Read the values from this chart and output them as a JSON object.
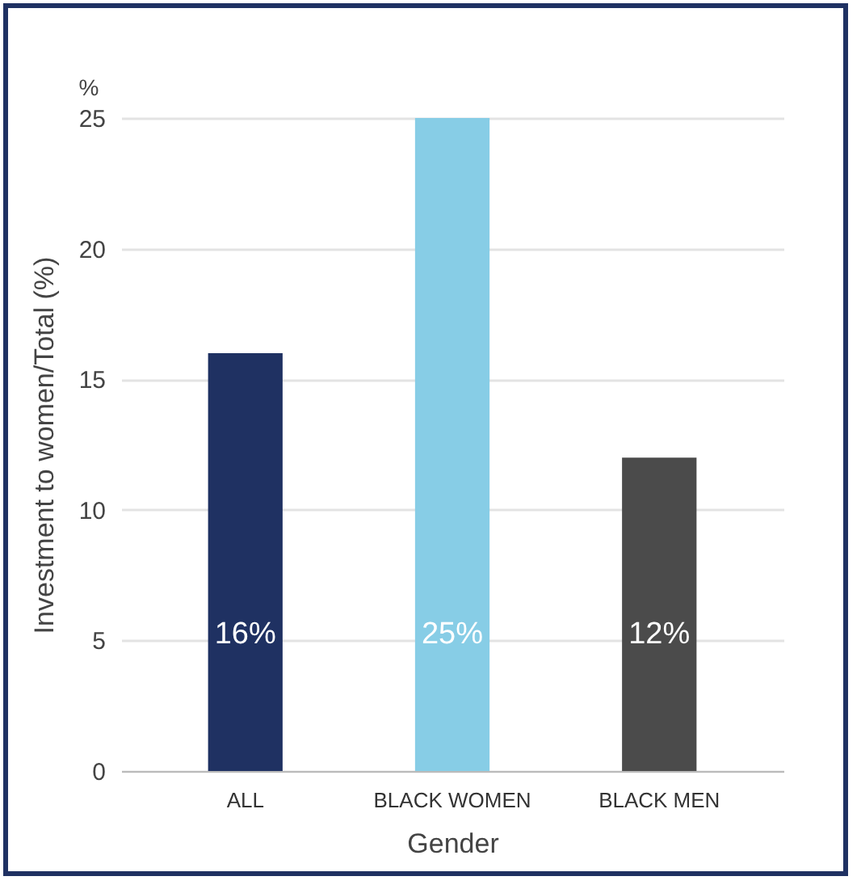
{
  "chart_data": {
    "type": "bar",
    "xlabel": "Gender",
    "ylabel": "Investment to women/Total (%)",
    "annotations": [
      "%"
    ],
    "categories": [
      "ALL",
      "BLACK WOMEN",
      "BLACK MEN"
    ],
    "values": [
      16,
      25,
      12
    ],
    "colors": [
      "#1f3162",
      "#87cde6",
      "#4b4b4b"
    ],
    "value_labels": [
      "16%",
      "25%",
      "12%"
    ],
    "ylim": [
      0,
      25
    ],
    "yticks": [
      0,
      5,
      10,
      15,
      20,
      25
    ],
    "grid": "y"
  }
}
